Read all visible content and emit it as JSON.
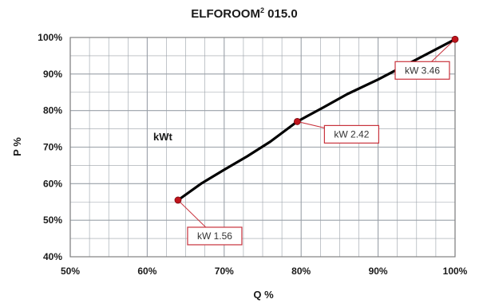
{
  "chart_data": {
    "type": "line",
    "title": "ELFOROOM",
    "title_superscript": "2",
    "title_suffix": " 015.0",
    "xlabel": "Q %",
    "ylabel": "P %",
    "xlim": [
      50,
      100
    ],
    "ylim": [
      40,
      100
    ],
    "x_ticks": [
      "50%",
      "60%",
      "70%",
      "80%",
      "90%",
      "100%"
    ],
    "y_ticks": [
      "40%",
      "50%",
      "60%",
      "70%",
      "80%",
      "90%",
      "100%"
    ],
    "grid": true,
    "annotation": "kWt",
    "series": [
      {
        "x": [
          64,
          67,
          70,
          73,
          76,
          79.5,
          83,
          86,
          90,
          95,
          100
        ],
        "y": [
          55.5,
          60,
          63.8,
          67.5,
          71.5,
          77,
          81,
          84.5,
          88.5,
          94,
          99.5
        ]
      }
    ],
    "points": [
      {
        "x": 64,
        "y": 55.5,
        "label": "kW 1.56"
      },
      {
        "x": 79.5,
        "y": 77,
        "label": "kW 2.42"
      },
      {
        "x": 100,
        "y": 99.5,
        "label": "kW 3.46"
      }
    ],
    "colors": {
      "line": "#000000",
      "marker": "#c0141c",
      "label_border": "#c8323c",
      "grid": "#9aa0a8",
      "frame": "#808080"
    }
  }
}
